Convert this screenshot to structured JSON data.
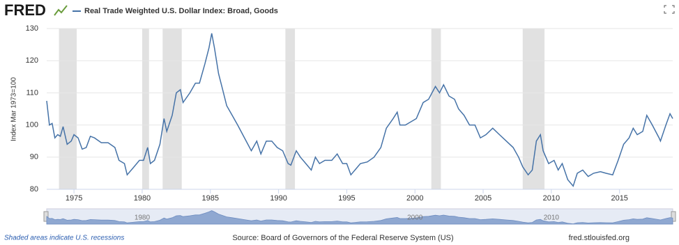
{
  "logo": "FRED",
  "chart_data": {
    "type": "line",
    "y_label": "Index Mar 1973=100",
    "x": [
      1973.0,
      1973.2,
      1973.4,
      1973.6,
      1973.8,
      1974.0,
      1974.2,
      1974.5,
      1974.8,
      1975.0,
      1975.3,
      1975.6,
      1975.9,
      1976.2,
      1976.5,
      1977.0,
      1977.5,
      1978.0,
      1978.3,
      1978.7,
      1978.9,
      1979.3,
      1979.8,
      1980.1,
      1980.4,
      1980.6,
      1980.9,
      1981.3,
      1981.6,
      1981.8,
      1982.2,
      1982.5,
      1982.8,
      1983.0,
      1983.5,
      1983.9,
      1984.2,
      1984.6,
      1984.9,
      1985.1,
      1985.3,
      1985.6,
      1985.9,
      1986.2,
      1986.6,
      1987.0,
      1987.5,
      1988.0,
      1988.4,
      1988.7,
      1989.1,
      1989.5,
      1989.9,
      1990.3,
      1990.7,
      1990.9,
      1991.3,
      1991.6,
      1992.0,
      1992.4,
      1992.7,
      1993.0,
      1993.4,
      1993.9,
      1994.3,
      1994.7,
      1995.0,
      1995.3,
      1995.7,
      1996.0,
      1996.5,
      1997.0,
      1997.5,
      1997.9,
      1998.4,
      1998.7,
      1998.9,
      1999.3,
      1999.7,
      2000.1,
      2000.6,
      2001.0,
      2001.5,
      2001.8,
      2002.1,
      2002.5,
      2002.9,
      2003.2,
      2003.6,
      2004.0,
      2004.4,
      2004.8,
      2005.2,
      2005.7,
      2006.2,
      2006.7,
      2007.2,
      2007.6,
      2007.9,
      2008.3,
      2008.6,
      2008.9,
      2009.2,
      2009.4,
      2009.8,
      2010.2,
      2010.5,
      2010.8,
      2011.2,
      2011.6,
      2011.9,
      2012.3,
      2012.7,
      2013.1,
      2013.6,
      2014.0,
      2014.5,
      2014.9,
      2015.3,
      2015.7,
      2016.0,
      2016.3,
      2016.7,
      2017.0,
      2017.4,
      2017.9,
      2018.0,
      2018.4,
      2018.7,
      2018.9
    ],
    "series": [
      {
        "name": "Real Trade Weighted U.S. Dollar Index: Broad, Goods",
        "color": "#4572a7",
        "values": [
          107.5,
          100,
          100.5,
          96,
          97,
          96.5,
          99.5,
          94,
          95,
          97,
          96,
          92.5,
          93,
          96.5,
          96,
          94.5,
          94.5,
          93,
          89,
          88,
          84.5,
          86.5,
          89,
          89,
          93,
          88,
          89,
          94,
          102,
          98,
          103,
          110,
          111,
          107,
          110,
          113,
          113,
          119,
          124,
          128.5,
          124,
          116,
          111,
          106,
          103,
          100,
          96,
          92,
          95,
          91,
          95,
          95,
          93,
          92,
          88,
          87.5,
          92,
          90,
          88,
          86,
          90,
          88,
          89,
          89,
          91,
          88,
          88,
          84.5,
          86.5,
          88,
          88.5,
          90,
          93,
          99,
          102,
          104,
          100,
          100,
          101,
          102,
          107,
          108,
          112,
          110,
          112.5,
          109,
          108,
          105,
          103,
          100,
          100,
          96,
          97,
          99,
          97,
          95,
          93,
          90,
          87,
          84.5,
          86,
          95,
          97,
          92,
          88,
          89,
          86,
          88,
          83,
          81,
          85,
          86,
          84,
          85,
          85.5,
          85,
          84.5,
          89,
          94,
          96,
          99,
          97,
          98,
          103,
          100,
          96,
          95,
          100,
          103.5,
          102
        ]
      }
    ],
    "recessions": [
      [
        1973.9,
        1975.2
      ],
      [
        1980.0,
        1980.5
      ],
      [
        1981.5,
        1982.9
      ],
      [
        1990.5,
        1991.2
      ],
      [
        2001.2,
        2001.9
      ],
      [
        2007.9,
        2009.5
      ]
    ],
    "xlim": [
      1973,
      2018.9
    ],
    "xticks": [
      1975,
      1980,
      1985,
      1990,
      1995,
      2000,
      2005,
      2010,
      2015
    ],
    "ylim": [
      80,
      130
    ],
    "yticks": [
      80,
      90,
      100,
      110,
      120,
      130
    ],
    "navigator_xticks": [
      1980,
      2000,
      2010
    ],
    "grid": true
  },
  "footer": {
    "note": "Shaded areas indicate U.S. recessions",
    "source": "Source: Board of Governors of the Federal Reserve System (US)",
    "site": "fred.stlouisfed.org"
  }
}
